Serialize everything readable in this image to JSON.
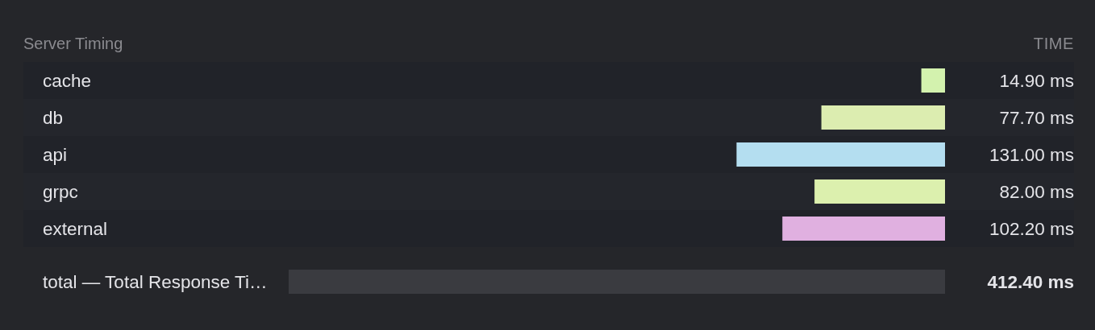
{
  "chart_data": {
    "type": "bar",
    "orientation": "horizontal",
    "title": "Server Timing",
    "annotations": [
      "TIME"
    ],
    "categories": [
      "cache",
      "db",
      "api",
      "grpc",
      "external",
      "total — Total Response Ti…"
    ],
    "values": [
      14.9,
      77.7,
      131,
      82,
      102.2,
      412.4
    ],
    "colors": [
      "#d3f2ae",
      "#dcedb0",
      "#b4def0",
      "#dcf0ae",
      "#e0b0e0",
      "#3a3b40"
    ],
    "value_labels": [
      "14.90 ms",
      "77.70 ms",
      "131.00 ms",
      "82.00 ms",
      "102.20 ms",
      "412.40 ms"
    ],
    "xlim": [
      412.4,
      0
    ],
    "tick_labels": "y"
  }
}
